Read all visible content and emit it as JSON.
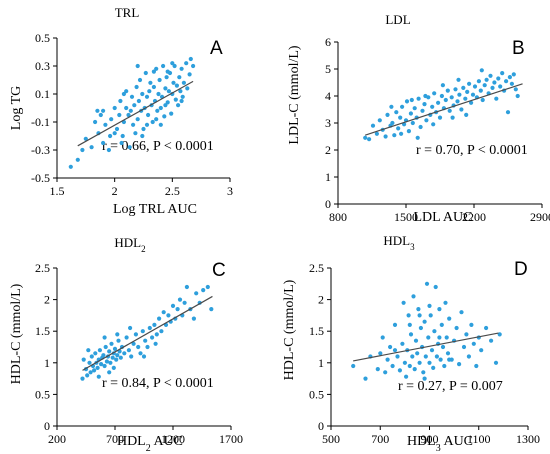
{
  "colors": {
    "point": "#2e9fdc",
    "trend": "#4a4a4a"
  },
  "chart_data": [
    {
      "type": "scatter",
      "panel": "A",
      "title": "TRL",
      "xlabel": "Log TRL AUC",
      "ylabel": "Log TG",
      "xlim": [
        1.5,
        3
      ],
      "ylim": [
        -0.5,
        0.5
      ],
      "xticks": [
        "1.5",
        "2",
        "2.5",
        "3"
      ],
      "yticks": [
        "-0.5",
        "-0.3",
        "-0.1",
        "0.1",
        "0.3",
        "0.5"
      ],
      "stat_text": "r = 0.66, P < 0.0001",
      "trend": [
        [
          1.68,
          -0.27
        ],
        [
          2.68,
          0.19
        ]
      ],
      "points": [
        [
          1.62,
          -0.42
        ],
        [
          1.68,
          -0.37
        ],
        [
          1.72,
          -0.3
        ],
        [
          1.75,
          -0.22
        ],
        [
          1.8,
          -0.28
        ],
        [
          1.83,
          -0.1
        ],
        [
          1.86,
          -0.18
        ],
        [
          1.88,
          -0.05
        ],
        [
          1.9,
          -0.25
        ],
        [
          1.92,
          -0.12
        ],
        [
          1.95,
          -0.3
        ],
        [
          1.97,
          -0.08
        ],
        [
          2.0,
          0.0
        ],
        [
          2.02,
          -0.15
        ],
        [
          2.04,
          -0.05
        ],
        [
          2.05,
          0.05
        ],
        [
          2.07,
          -0.2
        ],
        [
          2.08,
          -0.1
        ],
        [
          2.1,
          0.0
        ],
        [
          2.1,
          0.12
        ],
        [
          2.12,
          -0.05
        ],
        [
          2.13,
          -0.28
        ],
        [
          2.15,
          0.08
        ],
        [
          2.16,
          -0.12
        ],
        [
          2.17,
          0.02
        ],
        [
          2.18,
          -0.18
        ],
        [
          2.19,
          0.15
        ],
        [
          2.2,
          -0.08
        ],
        [
          2.21,
          0.05
        ],
        [
          2.22,
          0.2
        ],
        [
          2.23,
          -0.02
        ],
        [
          2.24,
          0.1
        ],
        [
          2.25,
          -0.15
        ],
        [
          2.26,
          0.0
        ],
        [
          2.27,
          0.25
        ],
        [
          2.28,
          0.08
        ],
        [
          2.29,
          -0.05
        ],
        [
          2.3,
          0.12
        ],
        [
          2.31,
          0.18
        ],
        [
          2.32,
          0.02
        ],
        [
          2.33,
          -0.1
        ],
        [
          2.34,
          0.15
        ],
        [
          2.35,
          0.05
        ],
        [
          2.36,
          0.28
        ],
        [
          2.37,
          -0.02
        ],
        [
          2.38,
          0.1
        ],
        [
          2.39,
          0.2
        ],
        [
          2.4,
          0.0
        ],
        [
          2.41,
          0.08
        ],
        [
          2.42,
          0.3
        ],
        [
          2.43,
          -0.06
        ],
        [
          2.44,
          0.14
        ],
        [
          2.45,
          0.22
        ],
        [
          2.46,
          0.04
        ],
        [
          2.47,
          0.12
        ],
        [
          2.48,
          0.25
        ],
        [
          2.49,
          -0.04
        ],
        [
          2.5,
          0.1
        ],
        [
          2.51,
          0.18
        ],
        [
          2.52,
          0.3
        ],
        [
          2.53,
          0.06
        ],
        [
          2.54,
          0.16
        ],
        [
          2.55,
          0.02
        ],
        [
          2.56,
          0.22
        ],
        [
          2.57,
          0.12
        ],
        [
          2.58,
          0.28
        ],
        [
          2.59,
          0.08
        ],
        [
          2.6,
          0.18
        ],
        [
          2.62,
          0.32
        ],
        [
          2.63,
          0.14
        ],
        [
          2.65,
          0.24
        ],
        [
          2.66,
          0.35
        ],
        [
          2.68,
          0.3
        ],
        [
          1.9,
          -0.02
        ],
        [
          1.96,
          -0.2
        ],
        [
          2.06,
          -0.25
        ],
        [
          2.14,
          -0.02
        ],
        [
          2.28,
          -0.12
        ],
        [
          2.34,
          0.26
        ],
        [
          2.44,
          0.02
        ],
        [
          2.2,
          0.3
        ],
        [
          2.5,
          0.32
        ],
        [
          2.4,
          -0.12
        ],
        [
          2.58,
          0.05
        ],
        [
          2.0,
          -0.18
        ],
        [
          2.08,
          0.1
        ],
        [
          2.24,
          -0.2
        ],
        [
          1.85,
          -0.02
        ],
        [
          2.36,
          -0.08
        ],
        [
          2.46,
          0.26
        ]
      ]
    },
    {
      "type": "scatter",
      "panel": "B",
      "title": "LDL",
      "xlabel": "LDL AUC",
      "ylabel": "LDL-C (mmol/L)",
      "xlim": [
        800,
        2900
      ],
      "ylim": [
        0,
        6
      ],
      "xticks": [
        "800",
        "1500",
        "2200",
        "2900"
      ],
      "yticks": [
        "0",
        "1",
        "2",
        "3",
        "4",
        "5",
        "6"
      ],
      "stat_text": "r = 0.70, P < 0.0001",
      "trend": [
        [
          1080,
          2.55
        ],
        [
          2700,
          4.45
        ]
      ],
      "points": [
        [
          1080,
          2.45
        ],
        [
          1120,
          2.4
        ],
        [
          1160,
          2.9
        ],
        [
          1200,
          2.6
        ],
        [
          1230,
          3.1
        ],
        [
          1260,
          2.75
        ],
        [
          1290,
          2.5
        ],
        [
          1310,
          3.3
        ],
        [
          1340,
          2.9
        ],
        [
          1360,
          3.0
        ],
        [
          1380,
          2.55
        ],
        [
          1400,
          3.4
        ],
        [
          1420,
          2.8
        ],
        [
          1440,
          3.2
        ],
        [
          1460,
          3.6
        ],
        [
          1480,
          2.95
        ],
        [
          1500,
          3.1
        ],
        [
          1510,
          3.8
        ],
        [
          1530,
          2.7
        ],
        [
          1550,
          3.35
        ],
        [
          1570,
          3.0
        ],
        [
          1590,
          3.55
        ],
        [
          1610,
          3.2
        ],
        [
          1630,
          3.9
        ],
        [
          1650,
          2.85
        ],
        [
          1670,
          3.45
        ],
        [
          1690,
          3.7
        ],
        [
          1710,
          3.1
        ],
        [
          1730,
          3.95
        ],
        [
          1750,
          3.3
        ],
        [
          1770,
          3.6
        ],
        [
          1790,
          4.1
        ],
        [
          1810,
          3.4
        ],
        [
          1830,
          3.75
        ],
        [
          1850,
          3.2
        ],
        [
          1870,
          4.0
        ],
        [
          1890,
          3.55
        ],
        [
          1910,
          3.85
        ],
        [
          1930,
          4.2
        ],
        [
          1950,
          3.45
        ],
        [
          1970,
          3.95
        ],
        [
          1990,
          3.65
        ],
        [
          2010,
          4.25
        ],
        [
          2030,
          3.8
        ],
        [
          2050,
          4.05
        ],
        [
          2070,
          3.5
        ],
        [
          2090,
          4.3
        ],
        [
          2110,
          3.9
        ],
        [
          2130,
          4.15
        ],
        [
          2150,
          4.45
        ],
        [
          2170,
          3.75
        ],
        [
          2190,
          4.05
        ],
        [
          2210,
          4.35
        ],
        [
          2230,
          3.95
        ],
        [
          2250,
          4.55
        ],
        [
          2270,
          4.2
        ],
        [
          2290,
          3.85
        ],
        [
          2310,
          4.4
        ],
        [
          2330,
          4.6
        ],
        [
          2350,
          4.1
        ],
        [
          2370,
          4.75
        ],
        [
          2390,
          4.3
        ],
        [
          2410,
          4.5
        ],
        [
          2430,
          3.9
        ],
        [
          2450,
          4.65
        ],
        [
          2470,
          4.35
        ],
        [
          2490,
          4.85
        ],
        [
          2510,
          4.2
        ],
        [
          2530,
          4.55
        ],
        [
          2550,
          3.4
        ],
        [
          2570,
          4.7
        ],
        [
          2590,
          4.45
        ],
        [
          2610,
          4.8
        ],
        [
          2630,
          4.25
        ],
        [
          2650,
          4.0
        ],
        [
          1450,
          2.6
        ],
        [
          1620,
          2.45
        ],
        [
          1780,
          2.95
        ],
        [
          1980,
          3.2
        ],
        [
          2040,
          4.6
        ],
        [
          1880,
          4.4
        ],
        [
          1700,
          4.0
        ],
        [
          1560,
          3.85
        ],
        [
          2280,
          4.95
        ],
        [
          1350,
          3.6
        ],
        [
          2120,
          3.3
        ]
      ]
    },
    {
      "type": "scatter",
      "panel": "C",
      "title": "HDL2",
      "xlabel": "HDL2 AUC",
      "ylabel": "HDL-C (mmol/L)",
      "xlim": [
        200,
        1700
      ],
      "ylim": [
        0,
        2.5
      ],
      "xticks": [
        "200",
        "700",
        "1200",
        "1700"
      ],
      "yticks": [
        "0",
        "0.5",
        "1",
        "1.5",
        "2",
        "2.5"
      ],
      "stat_text": "r = 0.84, P < 0.0001",
      "trend": [
        [
          420,
          0.88
        ],
        [
          1540,
          2.05
        ]
      ],
      "points": [
        [
          420,
          0.75
        ],
        [
          430,
          1.05
        ],
        [
          450,
          0.9
        ],
        [
          460,
          0.8
        ],
        [
          480,
          1.0
        ],
        [
          490,
          0.85
        ],
        [
          500,
          1.1
        ],
        [
          510,
          0.95
        ],
        [
          520,
          0.88
        ],
        [
          530,
          1.15
        ],
        [
          540,
          1.0
        ],
        [
          550,
          0.92
        ],
        [
          560,
          1.05
        ],
        [
          570,
          1.2
        ],
        [
          580,
          0.98
        ],
        [
          590,
          1.08
        ],
        [
          600,
          1.12
        ],
        [
          610,
          0.95
        ],
        [
          620,
          1.25
        ],
        [
          630,
          1.02
        ],
        [
          640,
          1.1
        ],
        [
          650,
          1.18
        ],
        [
          660,
          1.0
        ],
        [
          670,
          1.3
        ],
        [
          680,
          1.08
        ],
        [
          690,
          1.15
        ],
        [
          700,
          1.22
        ],
        [
          710,
          1.05
        ],
        [
          720,
          1.12
        ],
        [
          730,
          1.35
        ],
        [
          740,
          1.18
        ],
        [
          750,
          1.08
        ],
        [
          760,
          1.25
        ],
        [
          780,
          1.15
        ],
        [
          800,
          1.4
        ],
        [
          820,
          1.2
        ],
        [
          840,
          1.1
        ],
        [
          860,
          1.3
        ],
        [
          880,
          1.45
        ],
        [
          900,
          1.25
        ],
        [
          920,
          1.15
        ],
        [
          940,
          1.5
        ],
        [
          960,
          1.35
        ],
        [
          980,
          1.25
        ],
        [
          1000,
          1.55
        ],
        [
          1020,
          1.4
        ],
        [
          1040,
          1.6
        ],
        [
          1060,
          1.45
        ],
        [
          1080,
          1.7
        ],
        [
          1100,
          1.5
        ],
        [
          1120,
          1.8
        ],
        [
          1140,
          1.6
        ],
        [
          1160,
          1.75
        ],
        [
          1180,
          1.65
        ],
        [
          1200,
          1.9
        ],
        [
          1220,
          1.7
        ],
        [
          1240,
          1.85
        ],
        [
          1260,
          2.0
        ],
        [
          1280,
          1.75
        ],
        [
          1300,
          1.95
        ],
        [
          1320,
          2.2
        ],
        [
          1350,
          1.85
        ],
        [
          1380,
          1.7
        ],
        [
          1400,
          2.1
        ],
        [
          1430,
          1.95
        ],
        [
          1460,
          2.15
        ],
        [
          1500,
          2.2
        ],
        [
          1530,
          1.85
        ],
        [
          470,
          1.2
        ],
        [
          560,
          0.78
        ],
        [
          650,
          0.85
        ],
        [
          720,
          1.45
        ],
        [
          830,
          1.55
        ],
        [
          950,
          1.1
        ],
        [
          1050,
          1.3
        ],
        [
          610,
          1.4
        ],
        [
          690,
          0.92
        ]
      ]
    },
    {
      "type": "scatter",
      "panel": "D",
      "title": "HDL3",
      "xlabel": "HDL3 AUC",
      "ylabel": "HDL-C (mmol/L)",
      "xlim": [
        500,
        1300
      ],
      "ylim": [
        0,
        2.5
      ],
      "xticks": [
        "500",
        "700",
        "900",
        "1100",
        "1300"
      ],
      "yticks": [
        "0",
        "0.5",
        "1",
        "1.5",
        "2",
        "2.5"
      ],
      "stat_text": "r = 0.27, P = 0.007",
      "trend": [
        [
          590,
          1.03
        ],
        [
          1180,
          1.47
        ]
      ],
      "points": [
        [
          590,
          0.95
        ],
        [
          640,
          0.75
        ],
        [
          660,
          1.1
        ],
        [
          690,
          0.9
        ],
        [
          700,
          1.15
        ],
        [
          710,
          1.4
        ],
        [
          720,
          0.85
        ],
        [
          730,
          1.05
        ],
        [
          740,
          1.25
        ],
        [
          750,
          0.95
        ],
        [
          760,
          1.6
        ],
        [
          770,
          1.1
        ],
        [
          780,
          0.88
        ],
        [
          790,
          1.3
        ],
        [
          795,
          1.95
        ],
        [
          800,
          1.0
        ],
        [
          805,
          0.78
        ],
        [
          810,
          1.2
        ],
        [
          815,
          1.75
        ],
        [
          820,
          0.95
        ],
        [
          825,
          1.45
        ],
        [
          830,
          1.1
        ],
        [
          835,
          2.05
        ],
        [
          840,
          0.9
        ],
        [
          845,
          1.35
        ],
        [
          850,
          1.15
        ],
        [
          855,
          1.85
        ],
        [
          860,
          1.0
        ],
        [
          865,
          1.55
        ],
        [
          870,
          1.25
        ],
        [
          875,
          0.85
        ],
        [
          880,
          1.65
        ],
        [
          885,
          1.1
        ],
        [
          890,
          2.25
        ],
        [
          895,
          1.4
        ],
        [
          900,
          1.0
        ],
        [
          905,
          1.75
        ],
        [
          910,
          1.2
        ],
        [
          915,
          0.92
        ],
        [
          920,
          1.5
        ],
        [
          925,
          2.2
        ],
        [
          930,
          1.1
        ],
        [
          935,
          1.3
        ],
        [
          940,
          1.85
        ],
        [
          945,
          1.05
        ],
        [
          950,
          1.6
        ],
        [
          955,
          1.25
        ],
        [
          960,
          0.95
        ],
        [
          965,
          1.95
        ],
        [
          970,
          1.4
        ],
        [
          975,
          1.15
        ],
        [
          980,
          1.7
        ],
        [
          990,
          1.05
        ],
        [
          1000,
          1.35
        ],
        [
          1010,
          1.55
        ],
        [
          1020,
          0.98
        ],
        [
          1030,
          1.8
        ],
        [
          1040,
          1.25
        ],
        [
          1050,
          1.45
        ],
        [
          1060,
          1.1
        ],
        [
          1070,
          1.6
        ],
        [
          1080,
          1.3
        ],
        [
          1090,
          0.95
        ],
        [
          1100,
          1.4
        ],
        [
          1110,
          1.2
        ],
        [
          1130,
          1.55
        ],
        [
          1150,
          1.35
        ],
        [
          1170,
          1.0
        ],
        [
          1185,
          1.45
        ],
        [
          880,
          0.75
        ],
        [
          860,
          1.75
        ],
        [
          820,
          1.6
        ],
        [
          940,
          1.4
        ],
        [
          760,
          1.2
        ],
        [
          980,
          1.05
        ],
        [
          900,
          1.9
        ]
      ]
    }
  ]
}
